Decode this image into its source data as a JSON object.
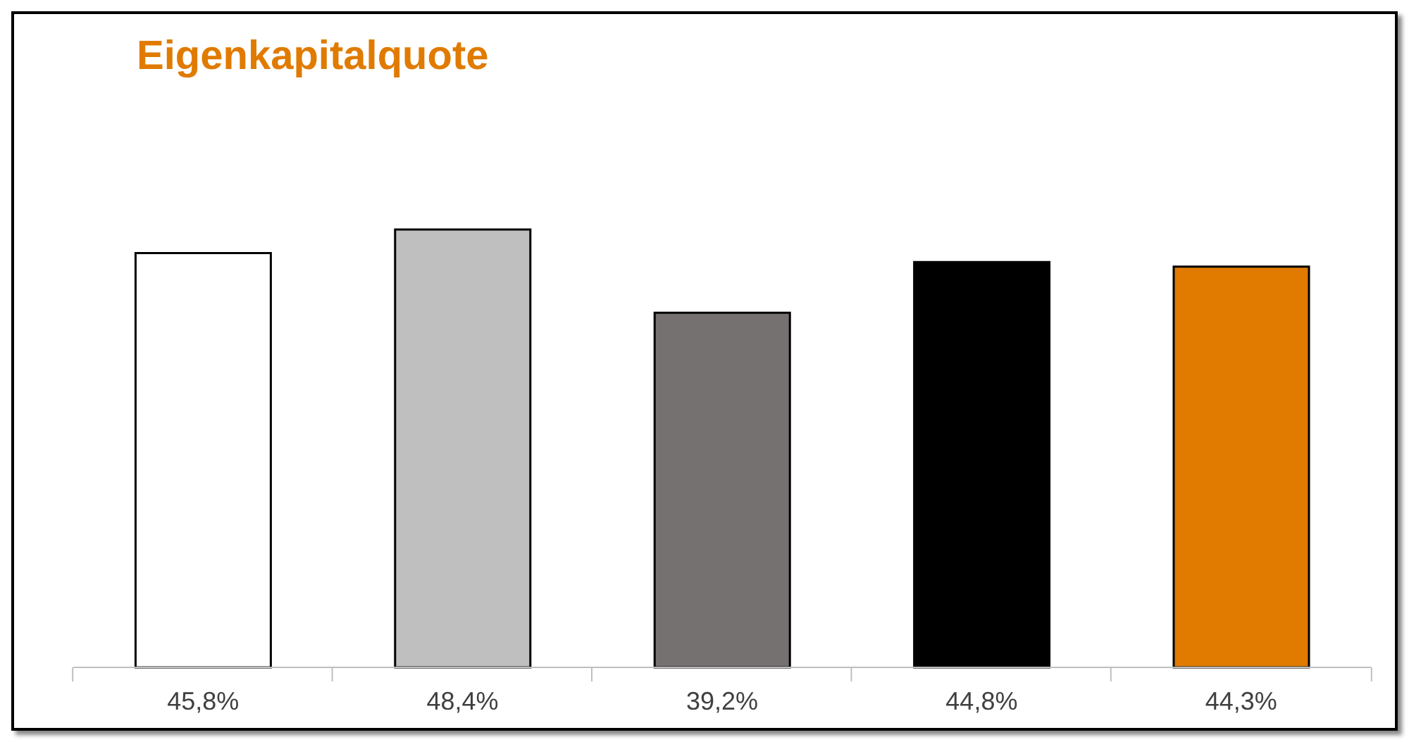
{
  "chart_data": {
    "type": "bar",
    "title": "Eigenkapitalquote",
    "categories": [
      null,
      null,
      null,
      null,
      null
    ],
    "values": [
      45.8,
      48.4,
      39.2,
      44.8,
      44.3
    ],
    "value_labels": [
      "45,8%",
      "48,4%",
      "39,2%",
      "44,8%",
      "44,3%"
    ],
    "colors": [
      "#ffffff",
      "#bfbfbf",
      "#767171",
      "#000000",
      "#e07b00"
    ],
    "grid": false,
    "legend": false
  }
}
